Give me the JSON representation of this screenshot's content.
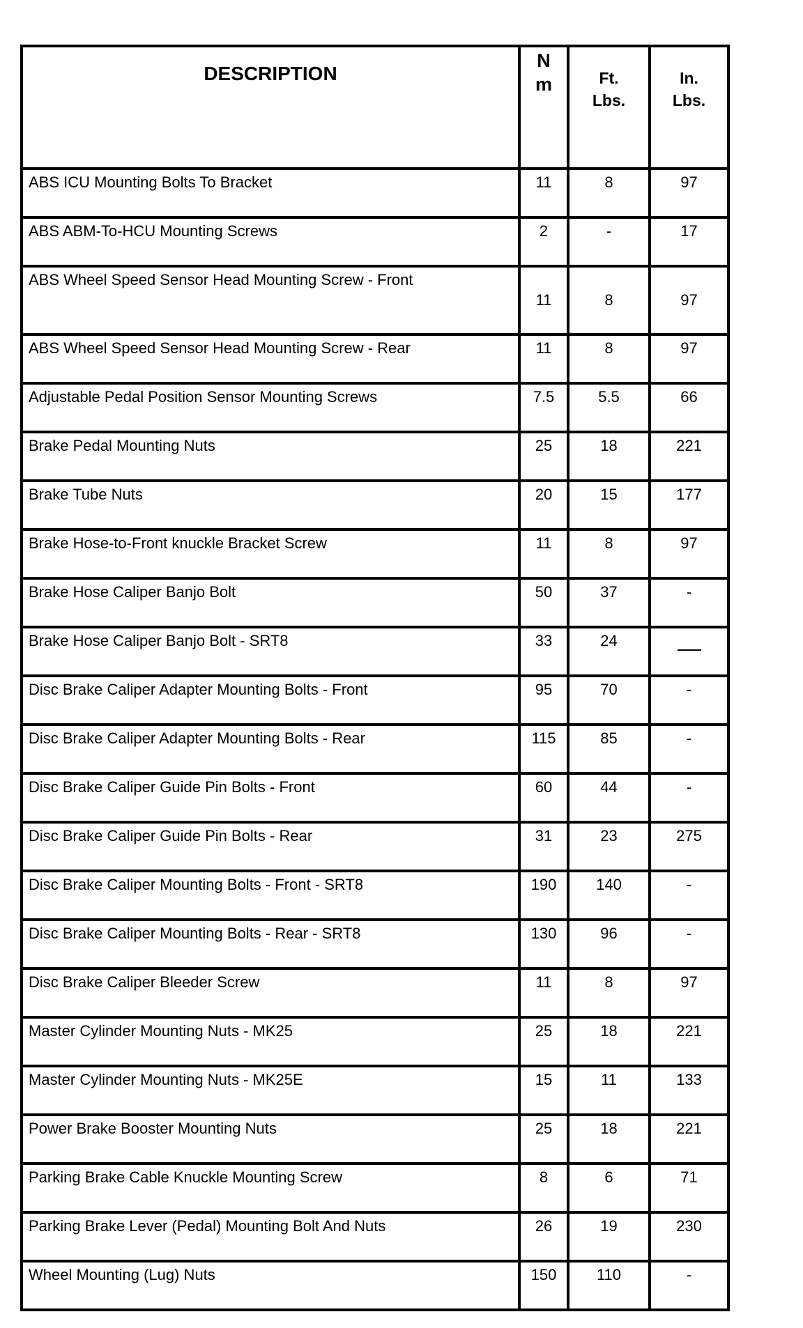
{
  "table": {
    "headers": {
      "description": "DESCRIPTION",
      "nm": "N m",
      "ft_lbs": "Ft. Lbs.",
      "in_lbs": "In. Lbs."
    },
    "rows": [
      {
        "description": "ABS ICU Mounting Bolts To Bracket",
        "nm": "11",
        "ft_lbs": "8",
        "in_lbs": "97"
      },
      {
        "description": "ABS ABM-To-HCU Mounting Screws",
        "nm": "2",
        "ft_lbs": "-",
        "in_lbs": "17"
      },
      {
        "description": "ABS Wheel Speed Sensor Head Mounting Screw - Front",
        "nm": "11",
        "ft_lbs": "8",
        "in_lbs": "97"
      },
      {
        "description": "ABS Wheel Speed Sensor Head Mounting Screw - Rear",
        "nm": "11",
        "ft_lbs": "8",
        "in_lbs": "97"
      },
      {
        "description": "Adjustable Pedal Position Sensor Mounting Screws",
        "nm": "7.5",
        "ft_lbs": "5.5",
        "in_lbs": "66"
      },
      {
        "description": "Brake Pedal Mounting Nuts",
        "nm": "25",
        "ft_lbs": "18",
        "in_lbs": "221"
      },
      {
        "description": "Brake Tube Nuts",
        "nm": "20",
        "ft_lbs": "15",
        "in_lbs": "177"
      },
      {
        "description": "Brake Hose-to-Front knuckle Bracket Screw",
        "nm": "11",
        "ft_lbs": "8",
        "in_lbs": "97"
      },
      {
        "description": "Brake Hose Caliper Banjo Bolt",
        "nm": "50",
        "ft_lbs": "37",
        "in_lbs": "-"
      },
      {
        "description": "Brake Hose Caliper Banjo Bolt - SRT8",
        "nm": "33",
        "ft_lbs": "24",
        "in_lbs": "—"
      },
      {
        "description": "Disc Brake Caliper Adapter Mounting Bolts - Front",
        "nm": "95",
        "ft_lbs": "70",
        "in_lbs": "-"
      },
      {
        "description": "Disc Brake Caliper Adapter Mounting Bolts - Rear",
        "nm": "115",
        "ft_lbs": "85",
        "in_lbs": "-"
      },
      {
        "description": "Disc Brake Caliper Guide Pin Bolts - Front",
        "nm": "60",
        "ft_lbs": "44",
        "in_lbs": "-"
      },
      {
        "description": "Disc Brake Caliper Guide Pin Bolts - Rear",
        "nm": "31",
        "ft_lbs": "23",
        "in_lbs": "275"
      },
      {
        "description": "Disc Brake Caliper Mounting Bolts - Front - SRT8",
        "nm": "190",
        "ft_lbs": "140",
        "in_lbs": "-"
      },
      {
        "description": "Disc Brake Caliper Mounting Bolts - Rear - SRT8",
        "nm": "130",
        "ft_lbs": "96",
        "in_lbs": "-"
      },
      {
        "description": "Disc Brake Caliper Bleeder Screw",
        "nm": "11",
        "ft_lbs": "8",
        "in_lbs": "97"
      },
      {
        "description": "Master Cylinder Mounting Nuts - MK25",
        "nm": "25",
        "ft_lbs": "18",
        "in_lbs": "221"
      },
      {
        "description": "Master Cylinder Mounting Nuts - MK25E",
        "nm": "15",
        "ft_lbs": "11",
        "in_lbs": "133"
      },
      {
        "description": "Power Brake Booster Mounting Nuts",
        "nm": "25",
        "ft_lbs": "18",
        "in_lbs": "221"
      },
      {
        "description": "Parking Brake Cable Knuckle Mounting Screw",
        "nm": "8",
        "ft_lbs": "6",
        "in_lbs": "71"
      },
      {
        "description": "Parking Brake Lever (Pedal) Mounting Bolt And Nuts",
        "nm": "26",
        "ft_lbs": "19",
        "in_lbs": "230"
      },
      {
        "description": "Wheel Mounting (Lug) Nuts",
        "nm": "150",
        "ft_lbs": "110",
        "in_lbs": "-"
      }
    ]
  }
}
